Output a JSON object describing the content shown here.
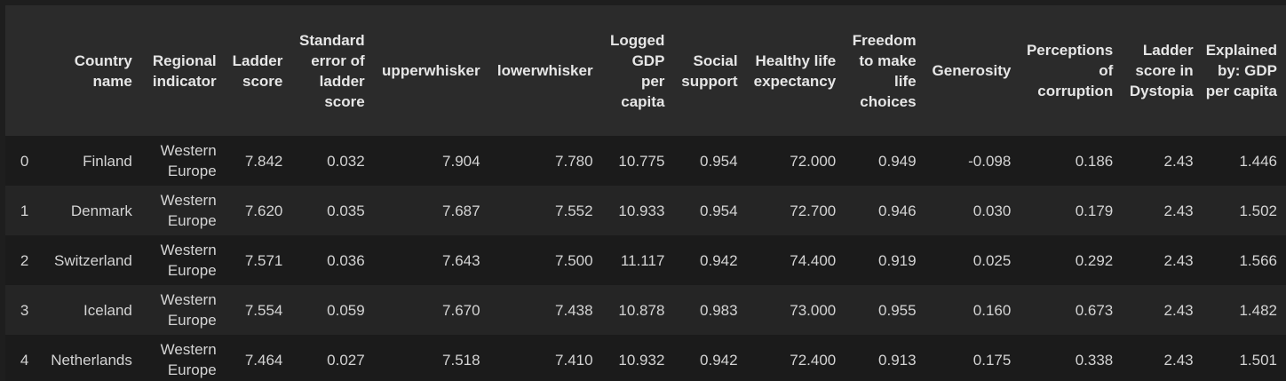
{
  "table": {
    "columns": [
      "",
      "Country name",
      "Regional indicator",
      "Ladder score",
      "Standard error of ladder score",
      "upperwhisker",
      "lowerwhisker",
      "Logged GDP per capita",
      "Social support",
      "Healthy life expectancy",
      "Freedom to make life choices",
      "Generosity",
      "Perceptions of corruption",
      "Ladder score in Dystopia",
      "Explained by: GDP per capita"
    ],
    "rows": [
      [
        "0",
        "Finland",
        "Western Europe",
        "7.842",
        "0.032",
        "7.904",
        "7.780",
        "10.775",
        "0.954",
        "72.000",
        "0.949",
        "-0.098",
        "0.186",
        "2.43",
        "1.446"
      ],
      [
        "1",
        "Denmark",
        "Western Europe",
        "7.620",
        "0.035",
        "7.687",
        "7.552",
        "10.933",
        "0.954",
        "72.700",
        "0.946",
        "0.030",
        "0.179",
        "2.43",
        "1.502"
      ],
      [
        "2",
        "Switzerland",
        "Western Europe",
        "7.571",
        "0.036",
        "7.643",
        "7.500",
        "11.117",
        "0.942",
        "74.400",
        "0.919",
        "0.025",
        "0.292",
        "2.43",
        "1.566"
      ],
      [
        "3",
        "Iceland",
        "Western Europe",
        "7.554",
        "0.059",
        "7.670",
        "7.438",
        "10.878",
        "0.983",
        "73.000",
        "0.955",
        "0.160",
        "0.673",
        "2.43",
        "1.482"
      ],
      [
        "4",
        "Netherlands",
        "Western Europe",
        "7.464",
        "0.027",
        "7.518",
        "7.410",
        "10.932",
        "0.942",
        "72.400",
        "0.913",
        "0.175",
        "0.338",
        "2.43",
        "1.501"
      ]
    ]
  },
  "colors": {
    "background": "#1e1e1e",
    "header_background": "#2b2b2b",
    "row_odd": "#1b1b1b",
    "row_even": "#252525",
    "text": "#d4d4d4"
  }
}
